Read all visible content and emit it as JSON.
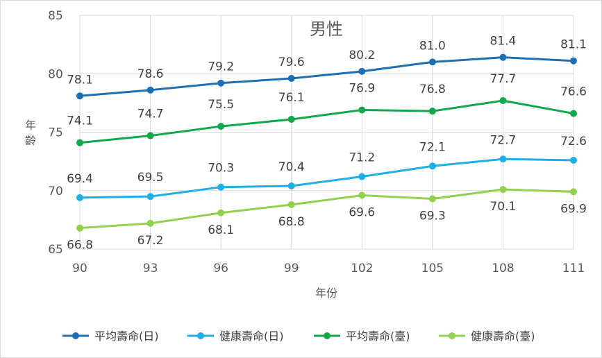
{
  "chart_data": {
    "type": "line",
    "title": "男性",
    "xlabel": "年份",
    "ylabel": "年齡",
    "x": [
      90,
      93,
      96,
      99,
      102,
      105,
      108,
      111
    ],
    "ylim": [
      65,
      85
    ],
    "yticks": [
      65,
      70,
      75,
      80,
      85
    ],
    "grid": true,
    "legend_position": "bottom",
    "series": [
      {
        "name": "平均壽命(日)",
        "color": "#1f6fb5",
        "values": [
          78.1,
          78.6,
          79.2,
          79.6,
          80.2,
          81.0,
          81.4,
          81.1
        ]
      },
      {
        "name": "健康壽命(日)",
        "color": "#1eaee8",
        "values": [
          69.4,
          69.5,
          70.3,
          70.4,
          71.2,
          72.1,
          72.7,
          72.6
        ]
      },
      {
        "name": "平均壽命(臺)",
        "color": "#10a84c",
        "values": [
          74.1,
          74.7,
          75.5,
          76.1,
          76.9,
          76.8,
          77.7,
          76.6
        ]
      },
      {
        "name": "健康壽命(臺)",
        "color": "#92d050",
        "values": [
          66.8,
          67.2,
          68.1,
          68.8,
          69.6,
          69.3,
          70.1,
          69.9
        ]
      }
    ]
  }
}
